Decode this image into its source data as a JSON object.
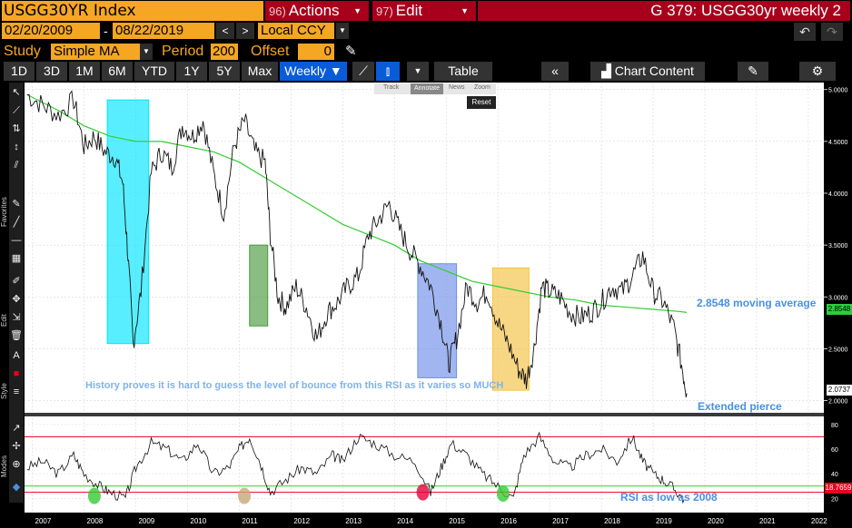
{
  "ticker": "USGG30YR Index",
  "menu": {
    "actions_num": "96)",
    "actions_label": "Actions",
    "edit_num": "97)",
    "edit_label": "Edit"
  },
  "window_title": "G 379: USGG30yr weekly 2",
  "date_range": {
    "start": "02/20/2009",
    "separator": "-",
    "end": "08/22/2019"
  },
  "currency": "Local CCY",
  "study": {
    "label": "Study",
    "value": "Simple MA",
    "period_label": "Period",
    "period": "200",
    "offset_label": "Offset",
    "offset": "0"
  },
  "tabs": [
    "1D",
    "3D",
    "1M",
    "6M",
    "YTD",
    "1Y",
    "5Y",
    "Max"
  ],
  "frequency": "Weekly",
  "table_label": "Table",
  "chart_content_label": "Chart Content",
  "overlay_tools": [
    "Track",
    "Annotate",
    "News",
    "Zoom"
  ],
  "reset_label": "Reset",
  "side_labels": {
    "favorites": "Favorites",
    "edit": "Edit",
    "style": "Style",
    "modes": "Modes"
  },
  "colors": {
    "accent_orange": "#f5a623",
    "title_red": "#a8001c",
    "active_tab_blue": "#0a5bd7",
    "price_line": "#000000",
    "ma_line": "#33cc33",
    "annotation_blue": "#4a90e2",
    "last_price_tag": "#ffffff",
    "ma_tag": "#2ecc40",
    "rsi_tag": "#e8001c"
  },
  "annotations": {
    "ma": "2.8548 moving average",
    "history": "History proves it is hard to guess the level of bounce from this RSI as it varies so MUCH",
    "pierce": "Extended pierce",
    "rsi": "RSI as low as 2008"
  },
  "price_axis": {
    "ticks": [
      "5.0000",
      "4.5000",
      "4.0000",
      "3.5000",
      "3.0000",
      "2.5000",
      "2.0000"
    ],
    "last_tag": "2.0737",
    "ma_tag": "2.8548"
  },
  "rsi_axis": {
    "ticks": [
      "80",
      "60",
      "40",
      "20"
    ],
    "tag": "18.7659"
  },
  "x_axis": [
    "2007",
    "2008",
    "2009",
    "2010",
    "2011",
    "2012",
    "2013",
    "2014",
    "2015",
    "2016",
    "2017",
    "2018",
    "2019",
    "2020",
    "2021",
    "2022"
  ],
  "chart_data": {
    "type": "line",
    "x_unit": "year",
    "price_series": {
      "x": [
        2006.9,
        2007.2,
        2007.5,
        2007.8,
        2008.0,
        2008.2,
        2008.4,
        2008.6,
        2008.75,
        2008.85,
        2008.95,
        2009.1,
        2009.3,
        2009.5,
        2009.7,
        2009.9,
        2010.1,
        2010.3,
        2010.5,
        2010.7,
        2010.9,
        2011.1,
        2011.3,
        2011.5,
        2011.6,
        2011.75,
        2011.9,
        2012.1,
        2012.3,
        2012.5,
        2012.7,
        2012.9,
        2013.1,
        2013.3,
        2013.5,
        2013.7,
        2013.9,
        2014.1,
        2014.3,
        2014.5,
        2014.7,
        2014.9,
        2015.05,
        2015.2,
        2015.4,
        2015.6,
        2015.8,
        2016.0,
        2016.2,
        2016.4,
        2016.55,
        2016.7,
        2016.85,
        2017.0,
        2017.2,
        2017.4,
        2017.6,
        2017.8,
        2018.0,
        2018.2,
        2018.4,
        2018.6,
        2018.8,
        2019.0,
        2019.2,
        2019.4,
        2019.55,
        2019.65
      ],
      "y": [
        4.95,
        4.85,
        4.75,
        4.9,
        4.45,
        4.55,
        4.4,
        4.35,
        4.1,
        3.4,
        2.55,
        3.05,
        4.2,
        4.4,
        4.25,
        4.65,
        4.55,
        4.7,
        4.2,
        3.8,
        4.45,
        4.7,
        4.4,
        4.3,
        3.6,
        3.0,
        2.9,
        3.1,
        2.9,
        2.6,
        2.85,
        2.95,
        3.1,
        3.2,
        3.6,
        3.75,
        3.9,
        3.65,
        3.45,
        3.3,
        3.1,
        2.75,
        2.35,
        2.6,
        3.1,
        2.95,
        3.05,
        2.75,
        2.55,
        2.3,
        2.2,
        2.5,
        3.1,
        3.05,
        3.0,
        2.85,
        2.8,
        2.85,
        2.95,
        3.1,
        3.05,
        3.2,
        3.4,
        3.05,
        2.95,
        2.7,
        2.35,
        2.07
      ]
    },
    "ma_series": {
      "name": "Simple MA 200",
      "x": [
        2006.9,
        2007.5,
        2008.0,
        2008.5,
        2009.0,
        2009.5,
        2010.0,
        2010.5,
        2011.0,
        2011.5,
        2012.0,
        2012.5,
        2013.0,
        2013.5,
        2014.0,
        2014.5,
        2015.0,
        2015.5,
        2016.0,
        2016.5,
        2017.0,
        2017.5,
        2018.0,
        2018.5,
        2019.0,
        2019.5,
        2019.65
      ],
      "y": [
        4.95,
        4.8,
        4.65,
        4.55,
        4.5,
        4.5,
        4.45,
        4.4,
        4.3,
        4.15,
        4.0,
        3.85,
        3.7,
        3.6,
        3.5,
        3.35,
        3.25,
        3.15,
        3.1,
        3.05,
        3.0,
        2.97,
        2.92,
        2.9,
        2.88,
        2.86,
        2.85
      ]
    },
    "rsi_series": {
      "name": "RSI",
      "x": [
        2006.9,
        2007.2,
        2007.5,
        2007.8,
        2008.0,
        2008.3,
        2008.5,
        2008.8,
        2009.0,
        2009.3,
        2009.6,
        2009.9,
        2010.2,
        2010.5,
        2010.8,
        2011.0,
        2011.2,
        2011.4,
        2011.6,
        2011.9,
        2012.2,
        2012.5,
        2012.8,
        2013.0,
        2013.3,
        2013.6,
        2014.0,
        2014.4,
        2014.7,
        2014.9,
        2015.1,
        2015.4,
        2015.7,
        2016.0,
        2016.3,
        2016.5,
        2016.8,
        2017.1,
        2017.4,
        2017.7,
        2018.0,
        2018.3,
        2018.6,
        2018.8,
        2019.0,
        2019.2,
        2019.4,
        2019.6
      ],
      "y": [
        45,
        50,
        40,
        55,
        40,
        30,
        25,
        20,
        45,
        65,
        60,
        50,
        65,
        40,
        45,
        60,
        70,
        50,
        25,
        35,
        45,
        40,
        55,
        50,
        70,
        65,
        55,
        50,
        25,
        45,
        65,
        55,
        40,
        30,
        20,
        55,
        70,
        50,
        45,
        55,
        60,
        50,
        70,
        50,
        40,
        35,
        28,
        19
      ]
    },
    "price_ylim": [
      1.9,
      5.05
    ],
    "rsi_ylim": [
      10,
      85
    ],
    "xlim": [
      2006.85,
      2022.3
    ],
    "rsi_levels": {
      "upper": 70,
      "mid": 30,
      "lower": 25
    },
    "highlight_boxes": [
      {
        "x0": 2008.45,
        "x1": 2009.25,
        "y0": 2.55,
        "y1": 4.9,
        "color": "#00e5ff"
      },
      {
        "x0": 2011.2,
        "x1": 2011.55,
        "y0": 2.72,
        "y1": 3.5,
        "color": "#4a9a3e"
      },
      {
        "x0": 2014.45,
        "x1": 2015.2,
        "y0": 2.22,
        "y1": 3.32,
        "color": "#6e8fe8"
      },
      {
        "x0": 2015.9,
        "x1": 2016.6,
        "y0": 2.1,
        "y1": 3.28,
        "color": "#f5c242"
      }
    ],
    "rsi_circles": [
      {
        "x": 2008.2,
        "y": 22,
        "color": "#33cc33"
      },
      {
        "x": 2011.1,
        "y": 22,
        "color": "#c8a878"
      },
      {
        "x": 2014.55,
        "y": 25,
        "color": "#e8003c"
      },
      {
        "x": 2016.1,
        "y": 24,
        "color": "#33cc33"
      }
    ]
  }
}
